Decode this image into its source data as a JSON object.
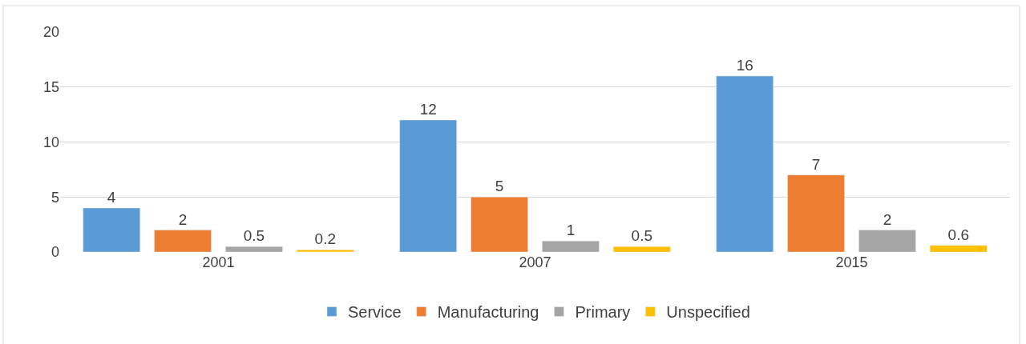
{
  "chart_data": {
    "type": "bar",
    "categories": [
      "2001",
      "2007",
      "2015"
    ],
    "series": [
      {
        "name": "Service",
        "color": "#5b9bd5",
        "values": [
          4,
          12,
          16
        ]
      },
      {
        "name": "Manufacturing",
        "color": "#ed7d31",
        "values": [
          2,
          5,
          7
        ]
      },
      {
        "name": "Primary",
        "color": "#a5a5a5",
        "values": [
          0.5,
          1,
          2
        ]
      },
      {
        "name": "Unspecified",
        "color": "#ffc000",
        "values": [
          0.2,
          0.5,
          0.6
        ]
      }
    ],
    "ylim": [
      0,
      20
    ],
    "yticks": [
      0,
      5,
      10,
      15,
      20
    ],
    "grid": "y",
    "legend": "bottom",
    "data_labels": true
  }
}
